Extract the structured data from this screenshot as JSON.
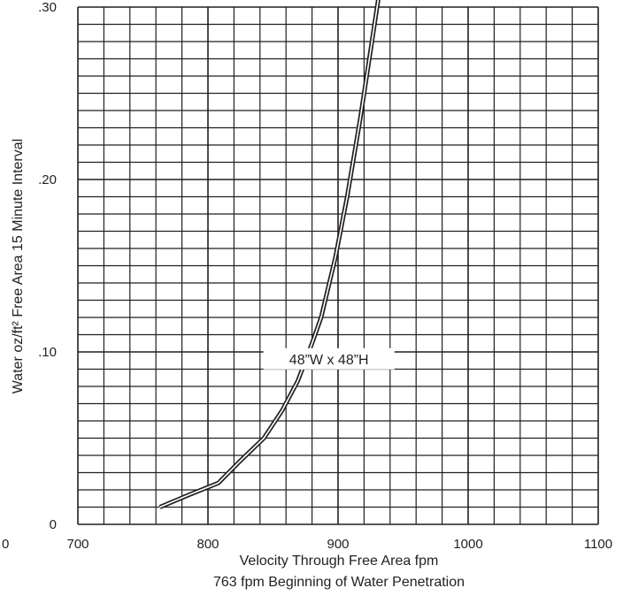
{
  "chart_data": {
    "type": "line",
    "xlabel": "Velocity Through Free Area fpm",
    "subtitle": "763 fpm Beginning of Water Penetration",
    "ylabel": "Water oz/ft² Free Area 15 Minute Interval",
    "xlim": [
      700,
      1100
    ],
    "ylim": [
      0,
      0.3
    ],
    "x_ticks": [
      {
        "value": 700,
        "label": "700"
      },
      {
        "value": 800,
        "label": "800"
      },
      {
        "value": 900,
        "label": "900"
      },
      {
        "value": 1000,
        "label": "1000"
      },
      {
        "value": 1100,
        "label": "1100"
      }
    ],
    "x_edge_label": "0",
    "y_ticks": [
      {
        "value": 0,
        "label": "0"
      },
      {
        "value": 0.1,
        "label": ".10"
      },
      {
        "value": 0.2,
        "label": ".20"
      },
      {
        "value": 0.3,
        "label": ".30"
      }
    ],
    "x_minor_step": 20,
    "y_minor_step": 0.01,
    "grid": true,
    "series": [
      {
        "name": "",
        "x": [
          763,
          785,
          808,
          825,
          843,
          857,
          869,
          880,
          887,
          898,
          907,
          917,
          925,
          931
        ],
        "y": [
          0.01,
          0.017,
          0.024,
          0.037,
          0.05,
          0.066,
          0.083,
          0.105,
          0.12,
          0.155,
          0.19,
          0.235,
          0.275,
          0.305
        ]
      }
    ],
    "annotations": [
      {
        "text": "48”W x 48”H",
        "x": 893,
        "y": 0.096
      }
    ]
  }
}
